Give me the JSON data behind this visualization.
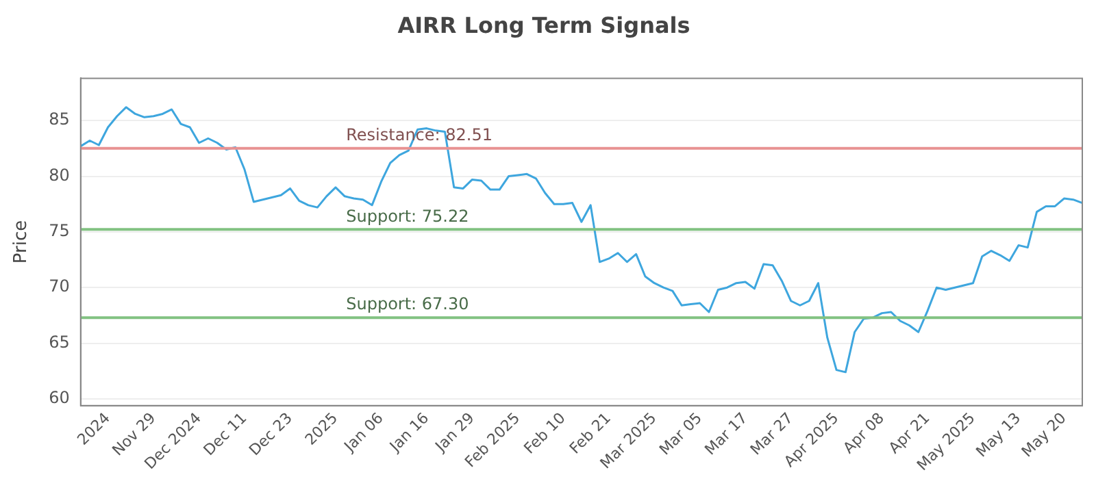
{
  "chart_data": {
    "type": "line",
    "title": "AIRR Long Term Signals",
    "ylabel": "Price",
    "categories": [
      null,
      null,
      null,
      "2024",
      null,
      null,
      null,
      null,
      "Nov 29",
      null,
      null,
      null,
      null,
      "Dec 2024",
      null,
      null,
      null,
      null,
      "Dec 11",
      null,
      null,
      null,
      null,
      "Dec 23",
      null,
      null,
      null,
      null,
      "2025",
      null,
      null,
      null,
      null,
      "Jan 06",
      null,
      null,
      null,
      null,
      "Jan 16",
      null,
      null,
      null,
      null,
      "Jan 29",
      null,
      null,
      null,
      null,
      "Feb 2025",
      null,
      null,
      null,
      null,
      "Feb 10",
      null,
      null,
      null,
      null,
      "Feb 21",
      null,
      null,
      null,
      null,
      "Mar 2025",
      null,
      null,
      null,
      null,
      "Mar 05",
      null,
      null,
      null,
      null,
      "Mar 17",
      null,
      null,
      null,
      null,
      "Mar 27",
      null,
      null,
      null,
      null,
      "Apr 2025",
      null,
      null,
      null,
      null,
      "Apr 08",
      null,
      null,
      null,
      null,
      "Apr 21",
      null,
      null,
      null,
      null,
      "May 2025",
      null,
      null,
      null,
      null,
      "May 13",
      null,
      null,
      null,
      null,
      "May 20",
      null,
      null
    ],
    "series": [
      {
        "color": "#3ea6de",
        "values": [
          82.7,
          83.2,
          82.8,
          84.4,
          85.4,
          86.2,
          85.6,
          85.3,
          85.4,
          85.6,
          86.0,
          84.7,
          84.4,
          83.0,
          83.4,
          83.0,
          82.4,
          82.6,
          80.6,
          77.7,
          77.9,
          78.1,
          78.3,
          78.9,
          77.8,
          77.4,
          77.2,
          78.2,
          79.0,
          78.2,
          78.0,
          77.9,
          77.4,
          79.5,
          81.2,
          81.9,
          82.3,
          84.2,
          84.3,
          84.1,
          84.0,
          79.0,
          78.9,
          79.7,
          79.6,
          78.8,
          78.8,
          80.0,
          80.1,
          80.2,
          79.8,
          78.5,
          77.5,
          77.5,
          77.6,
          75.9,
          77.4,
          72.3,
          72.6,
          73.1,
          72.3,
          73.0,
          71.0,
          70.4,
          70.0,
          69.7,
          68.4,
          68.5,
          68.6,
          67.8,
          69.8,
          70.0,
          70.4,
          70.5,
          69.9,
          72.1,
          72.0,
          70.6,
          68.8,
          68.4,
          68.8,
          70.4,
          65.5,
          62.6,
          62.4,
          66.0,
          67.2,
          67.3,
          67.7,
          67.8,
          67.0,
          66.6,
          66.0,
          67.9,
          70.0,
          69.8,
          70.0,
          70.2,
          70.4,
          72.8,
          73.3,
          72.9,
          72.4,
          73.8,
          73.6,
          76.8,
          77.3,
          77.3,
          78.0,
          77.9,
          77.6
        ]
      }
    ],
    "ylim": [
      59.4,
      88.8
    ],
    "yticks": [
      60,
      65,
      70,
      75,
      80,
      85
    ],
    "grid": "y",
    "legend": false,
    "marker": "none",
    "line_style": "solid",
    "ref_lines": [
      {
        "axis": "y",
        "value": 82.51,
        "label": "Resistance: 82.51",
        "color": "#e89292"
      },
      {
        "axis": "y",
        "value": 75.22,
        "label": "Support: 75.22",
        "color": "#82c282"
      },
      {
        "axis": "y",
        "value": 67.3,
        "label": "Support: 67.30",
        "color": "#82c282"
      }
    ]
  }
}
